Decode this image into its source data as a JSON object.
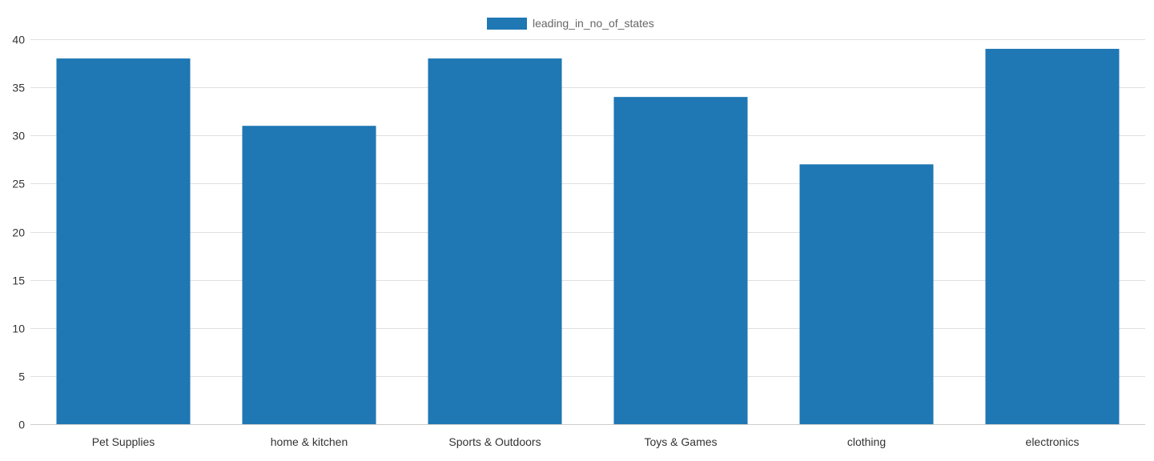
{
  "chart_data": {
    "type": "bar",
    "categories": [
      "Pet Supplies",
      "home & kitchen",
      "Sports & Outdoors",
      "Toys & Games",
      "clothing",
      "electronics"
    ],
    "series": [
      {
        "name": "leading_in_no_of_states",
        "values": [
          38,
          31,
          38,
          34,
          27,
          39
        ],
        "color": "#1f77b4"
      }
    ],
    "ylim": [
      0,
      40
    ],
    "yticks": [
      0,
      5,
      10,
      15,
      20,
      25,
      30,
      35,
      40
    ],
    "grid": true,
    "legend_position": "top-center",
    "xlabel": "",
    "ylabel": "",
    "title": ""
  }
}
